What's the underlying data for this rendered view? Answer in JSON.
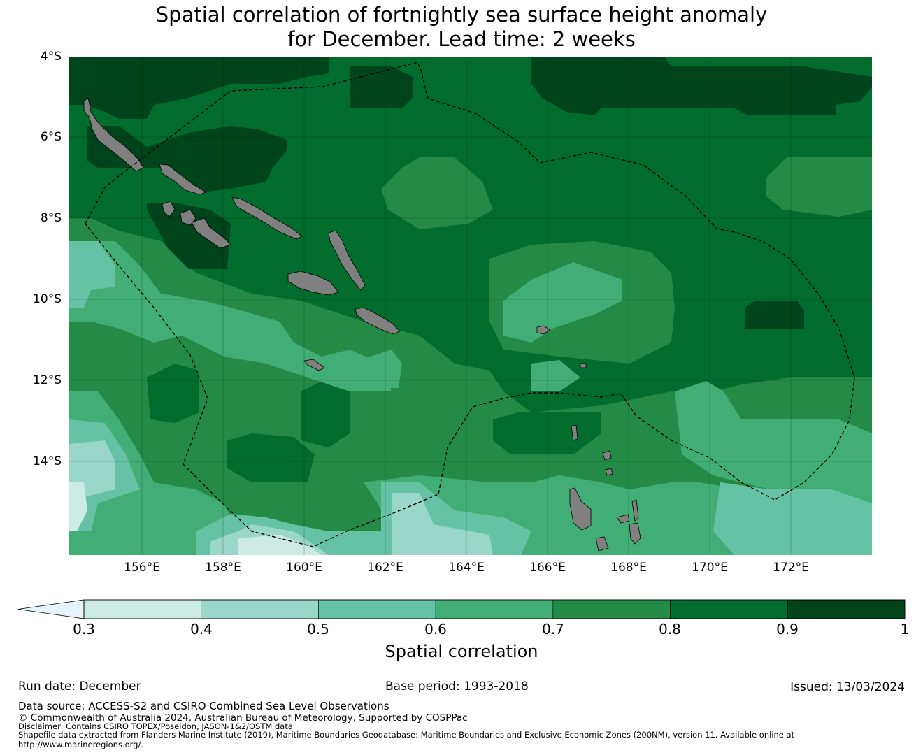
{
  "title_line1": "Spatial correlation of fortnightly sea surface height anomaly",
  "title_line2": "for December. Lead time: 2 weeks",
  "lat_labels": [
    "4°S",
    "6°S",
    "8°S",
    "10°S",
    "12°S",
    "14°S"
  ],
  "lon_labels": [
    "156°E",
    "158°E",
    "160°E",
    "162°E",
    "164°E",
    "166°E",
    "168°E",
    "170°E",
    "172°E"
  ],
  "colorbar": {
    "ticks": [
      "0.3",
      "0.4",
      "0.5",
      "0.6",
      "0.7",
      "0.8",
      "0.9",
      "1"
    ],
    "colors": [
      "#ccebe4",
      "#99d7c8",
      "#66c2a4",
      "#41ae76",
      "#238b45",
      "#006d2c",
      "#00441b"
    ],
    "extend_color": "#e6f4f9",
    "title": "Spatial correlation"
  },
  "land_color": "#808080",
  "footer": {
    "run_date": "Run date: December",
    "base_period": "Base period: 1993-2018",
    "issued": "Issued: 13/03/2024",
    "data_source": "Data source: ACCESS-S2 and CSIRO Combined Sea Level Observations",
    "copyright": "© Commonwealth of Australia 2024, Australian Bureau of Meteorology, Supported by COSPPac",
    "disclaimer": "Disclaimer: Contains CSIRO TOPEX/Poseidon, JASON-1&2/OSTM data",
    "shapefile1": "Shapefile data extracted from Flanders Marine Institute (2019), Maritime Boundaries Geodatabase: Maritime Boundaries and Exclusive Economic Zones (200NM), version 11. Available online at",
    "shapefile2": "http://www.marineregions.org/."
  }
}
